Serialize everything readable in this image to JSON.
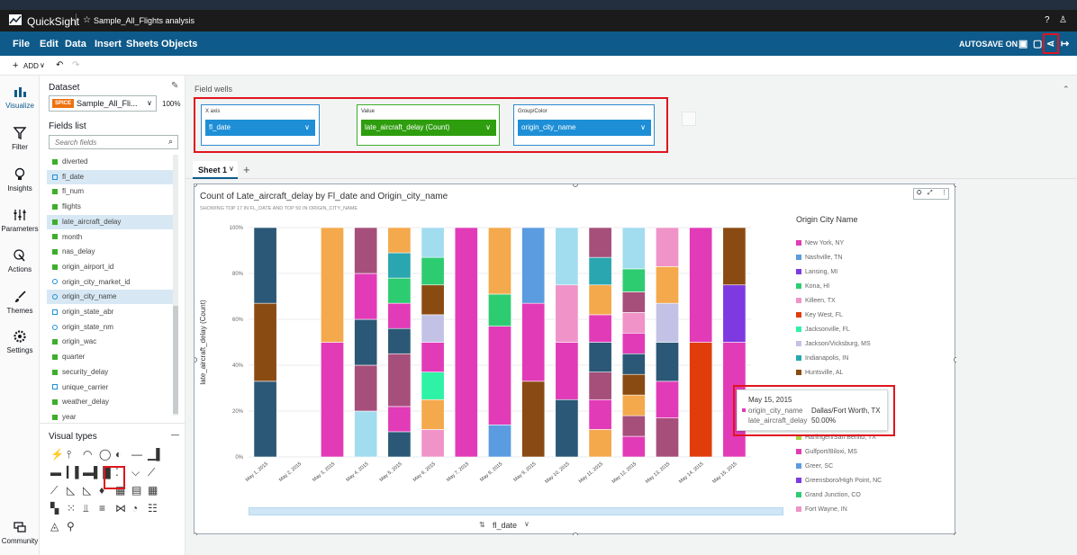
{
  "app": {
    "brand": "QuickSight",
    "analysis_title": "Sample_All_Flights analysis"
  },
  "menu": {
    "items": [
      "File",
      "Edit",
      "Data",
      "Insert",
      "Sheets",
      "Objects"
    ],
    "autosave": "AUTOSAVE ON"
  },
  "toolbar": {
    "add_label": "ADD"
  },
  "nav": {
    "items": [
      {
        "label": "Visualize",
        "icon": "bar-chart-icon"
      },
      {
        "label": "Filter",
        "icon": "filter-icon"
      },
      {
        "label": "Insights",
        "icon": "lightbulb-icon"
      },
      {
        "label": "Parameters",
        "icon": "sliders-icon"
      },
      {
        "label": "Actions",
        "icon": "cursor-click-icon"
      },
      {
        "label": "Themes",
        "icon": "brush-icon"
      },
      {
        "label": "Settings",
        "icon": "gear-icon"
      },
      {
        "label": "Community",
        "icon": "community-icon"
      }
    ]
  },
  "dataset": {
    "heading": "Dataset",
    "badge": "SPICE",
    "name": "Sample_All_Fli...",
    "percent": "100%"
  },
  "fields": {
    "heading": "Fields list",
    "search_placeholder": "Search fields",
    "items": [
      {
        "name": "diverted",
        "kind": "measure",
        "selected": false
      },
      {
        "name": "fl_date",
        "kind": "date",
        "selected": true
      },
      {
        "name": "fl_num",
        "kind": "measure",
        "selected": false
      },
      {
        "name": "flights",
        "kind": "measure",
        "selected": false
      },
      {
        "name": "late_aircraft_delay",
        "kind": "measure",
        "selected": true
      },
      {
        "name": "month",
        "kind": "measure",
        "selected": false
      },
      {
        "name": "nas_delay",
        "kind": "measure",
        "selected": false
      },
      {
        "name": "origin_airport_id",
        "kind": "measure",
        "selected": false
      },
      {
        "name": "origin_city_market_id",
        "kind": "geo",
        "selected": false
      },
      {
        "name": "origin_city_name",
        "kind": "geo",
        "selected": true
      },
      {
        "name": "origin_state_abr",
        "kind": "dim",
        "selected": false
      },
      {
        "name": "origin_state_nm",
        "kind": "geo",
        "selected": false
      },
      {
        "name": "origin_wac",
        "kind": "measure",
        "selected": false
      },
      {
        "name": "quarter",
        "kind": "measure",
        "selected": false
      },
      {
        "name": "security_delay",
        "kind": "measure",
        "selected": false
      },
      {
        "name": "unique_carrier",
        "kind": "dim",
        "selected": false
      },
      {
        "name": "weather_delay",
        "kind": "measure",
        "selected": false
      },
      {
        "name": "year",
        "kind": "measure",
        "selected": false
      }
    ]
  },
  "visual_types": {
    "heading": "Visual types"
  },
  "field_wells": {
    "heading": "Field wells",
    "x_axis": {
      "label": "X axis",
      "value": "fl_date"
    },
    "value": {
      "label": "Value",
      "value": "late_aircraft_delay (Count)"
    },
    "group": {
      "label": "Group/Color",
      "value": "origin_city_name"
    }
  },
  "sheet": {
    "tab": "Sheet 1"
  },
  "visual": {
    "title": "Count of Late_aircraft_delay by Fl_date and Origin_city_name",
    "subtitle": "SHOWING TOP 17 IN FL_DATE AND TOP 50 IN ORIGIN_CITY_NAME",
    "x_field": "fl_date"
  },
  "chart_data": {
    "type": "bar",
    "stacking": "percent",
    "ylabel": "late_aircraft_delay (Count)",
    "xlabel": "fl_date",
    "ylim": [
      0,
      100
    ],
    "yticks": [
      "0%",
      "20%",
      "40%",
      "60%",
      "80%",
      "100%"
    ],
    "categories": [
      "May 1, 2015",
      "May 2, 2015",
      "May 3, 2015",
      "May 4, 2015",
      "May 5, 2015",
      "May 6, 2015",
      "May 7, 2015",
      "May 8, 2015",
      "May 9, 2015",
      "May 10, 2015",
      "May 11, 2015",
      "May 12, 2015",
      "May 13, 2015",
      "May 14, 2015",
      "May 15, 2015"
    ],
    "stacks": [
      [
        {
          "c": "#2b5876",
          "v": 33
        },
        {
          "c": "#8a4b12",
          "v": 34
        },
        {
          "c": "#2b5876",
          "v": 33
        }
      ],
      [],
      [
        {
          "c": "#e23bb8",
          "v": 50
        },
        {
          "c": "#f4a94c",
          "v": 50
        }
      ],
      [
        {
          "c": "#a2dcef",
          "v": 20
        },
        {
          "c": "#a64f7a",
          "v": 20
        },
        {
          "c": "#2b5876",
          "v": 20
        },
        {
          "c": "#e23bb8",
          "v": 20
        },
        {
          "c": "#a64f7a",
          "v": 20
        }
      ],
      [
        {
          "c": "#2b5876",
          "v": 11
        },
        {
          "c": "#e23bb8",
          "v": 11
        },
        {
          "c": "#a64f7a",
          "v": 23
        },
        {
          "c": "#2b5876",
          "v": 11
        },
        {
          "c": "#e23bb8",
          "v": 11
        },
        {
          "c": "#2ecc71",
          "v": 11
        },
        {
          "c": "#2aa6b0",
          "v": 11
        },
        {
          "c": "#f4a94c",
          "v": 11
        }
      ],
      [
        {
          "c": "#f093c8",
          "v": 12
        },
        {
          "c": "#f4a94c",
          "v": 13
        },
        {
          "c": "#2ef2a6",
          "v": 12
        },
        {
          "c": "#e23bb8",
          "v": 13
        },
        {
          "c": "#c3c2e6",
          "v": 12
        },
        {
          "c": "#8a4b12",
          "v": 13
        },
        {
          "c": "#2ecc71",
          "v": 12
        },
        {
          "c": "#a2dcef",
          "v": 13
        }
      ],
      [
        {
          "c": "#e23bb8",
          "v": 100
        }
      ],
      [
        {
          "c": "#5b9be0",
          "v": 14
        },
        {
          "c": "#e23bb8",
          "v": 43
        },
        {
          "c": "#2ecc71",
          "v": 14
        },
        {
          "c": "#f4a94c",
          "v": 29
        }
      ],
      [
        {
          "c": "#8a4b12",
          "v": 33
        },
        {
          "c": "#e23bb8",
          "v": 34
        },
        {
          "c": "#5b9be0",
          "v": 33
        }
      ],
      [
        {
          "c": "#2b5876",
          "v": 25
        },
        {
          "c": "#e23bb8",
          "v": 25
        },
        {
          "c": "#f093c8",
          "v": 25
        },
        {
          "c": "#a2dcef",
          "v": 25
        }
      ],
      [
        {
          "c": "#f4a94c",
          "v": 12
        },
        {
          "c": "#e23bb8",
          "v": 13
        },
        {
          "c": "#a64f7a",
          "v": 12
        },
        {
          "c": "#2b5876",
          "v": 13
        },
        {
          "c": "#e23bb8",
          "v": 12
        },
        {
          "c": "#f4a94c",
          "v": 13
        },
        {
          "c": "#2aa6b0",
          "v": 12
        },
        {
          "c": "#a64f7a",
          "v": 13
        }
      ],
      [
        {
          "c": "#e23bb8",
          "v": 9
        },
        {
          "c": "#a64f7a",
          "v": 9
        },
        {
          "c": "#f4a94c",
          "v": 9
        },
        {
          "c": "#8a4b12",
          "v": 9
        },
        {
          "c": "#2b5876",
          "v": 9
        },
        {
          "c": "#e23bb8",
          "v": 9
        },
        {
          "c": "#f093c8",
          "v": 9
        },
        {
          "c": "#a64f7a",
          "v": 9
        },
        {
          "c": "#2ecc71",
          "v": 10
        },
        {
          "c": "#a2dcef",
          "v": 18
        }
      ],
      [
        {
          "c": "#a64f7a",
          "v": 17
        },
        {
          "c": "#e23bb8",
          "v": 16
        },
        {
          "c": "#2b5876",
          "v": 17
        },
        {
          "c": "#c3c2e6",
          "v": 17
        },
        {
          "c": "#f4a94c",
          "v": 16
        },
        {
          "c": "#f093c8",
          "v": 17
        }
      ],
      [
        {
          "c": "#e03d0a",
          "v": 50
        },
        {
          "c": "#e23bb8",
          "v": 50
        }
      ],
      [
        {
          "c": "#e23bb8",
          "v": 50
        },
        {
          "c": "#7e39e0",
          "v": 25
        },
        {
          "c": "#8a4b12",
          "v": 25
        }
      ]
    ],
    "legend": {
      "title": "Origin City Name",
      "entries": [
        {
          "name": "New York, NY",
          "color": "#e23bb8"
        },
        {
          "name": "Nashville, TN",
          "color": "#5b9be0"
        },
        {
          "name": "Lansing, MI",
          "color": "#7e39e0"
        },
        {
          "name": "Kona, HI",
          "color": "#2ecc71"
        },
        {
          "name": "Killeen, TX",
          "color": "#f093c8"
        },
        {
          "name": "Key West, FL",
          "color": "#e03d0a"
        },
        {
          "name": "Jacksonville, FL",
          "color": "#2ef2a6"
        },
        {
          "name": "Jackson/Vicksburg, MS",
          "color": "#c3c2e6"
        },
        {
          "name": "Indianapolis, IN",
          "color": "#2aa6b0"
        },
        {
          "name": "Huntsville, AL",
          "color": "#8a4b12"
        },
        {
          "name": "Harlingen/San Benito, TX",
          "color": "#a7d23c"
        },
        {
          "name": "Gulfport/Biloxi, MS",
          "color": "#e23bb8"
        },
        {
          "name": "Greer, SC",
          "color": "#5b9be0"
        },
        {
          "name": "Greensboro/High Point, NC",
          "color": "#7e39e0"
        },
        {
          "name": "Grand Junction, CO",
          "color": "#2ecc71"
        },
        {
          "name": "Fort Wayne, IN",
          "color": "#f093c8"
        }
      ]
    }
  },
  "tooltip": {
    "date": "May 15, 2015",
    "row1_key": "origin_city_name",
    "row1_val": "Dallas/Fort Worth, TX",
    "row2_key": "late_aircraft_delay",
    "row2_val": "50.00%",
    "color": "#e23bb8"
  }
}
